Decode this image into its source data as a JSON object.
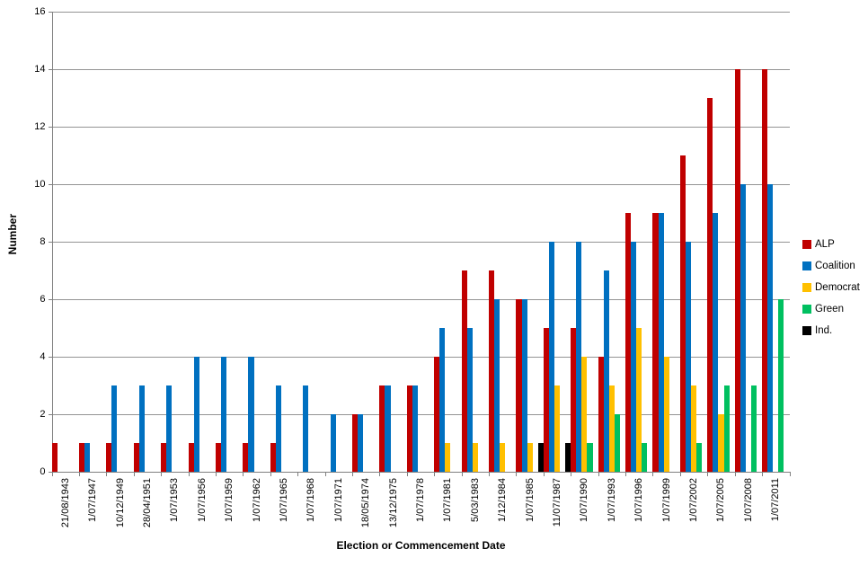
{
  "chart_data": {
    "type": "bar",
    "title": "",
    "xlabel": "Election or Commencement Date",
    "ylabel": "Number",
    "ylim": [
      0,
      16
    ],
    "yticks": [
      0,
      2,
      4,
      6,
      8,
      10,
      12,
      14,
      16
    ],
    "grid": true,
    "legend_position": "right",
    "categories": [
      "21/08/1943",
      "1/07/1947",
      "10/12/1949",
      "28/04/1951",
      "1/07/1953",
      "1/07/1956",
      "1/07/1959",
      "1/07/1962",
      "1/07/1965",
      "1/07/1968",
      "1/07/1971",
      "18/05/1974",
      "13/12/1975",
      "1/07/1978",
      "1/07/1981",
      "5/03/1983",
      "1/12/1984",
      "1/07/1985",
      "11/07/1987",
      "1/07/1990",
      "1/07/1993",
      "1/07/1996",
      "1/07/1999",
      "1/07/2002",
      "1/07/2005",
      "1/07/2008",
      "1/07/2011"
    ],
    "series": [
      {
        "name": "ALP",
        "key": "alp",
        "color": "#C00000",
        "values": [
          1,
          1,
          1,
          1,
          1,
          1,
          1,
          1,
          1,
          0,
          0,
          2,
          3,
          3,
          4,
          7,
          7,
          6,
          5,
          5,
          4,
          9,
          9,
          11,
          13,
          14,
          14
        ]
      },
      {
        "name": "Coalition",
        "key": "coalition",
        "color": "#0070C0",
        "values": [
          0,
          1,
          3,
          3,
          3,
          4,
          4,
          4,
          3,
          3,
          2,
          2,
          3,
          3,
          5,
          5,
          6,
          6,
          8,
          8,
          7,
          8,
          9,
          8,
          9,
          10,
          10
        ]
      },
      {
        "name": "Democrat",
        "key": "democrat",
        "color": "#FFC000",
        "values": [
          0,
          0,
          0,
          0,
          0,
          0,
          0,
          0,
          0,
          0,
          0,
          0,
          0,
          0,
          1,
          1,
          1,
          1,
          3,
          4,
          3,
          5,
          4,
          3,
          2,
          0,
          0
        ]
      },
      {
        "name": "Green",
        "key": "green",
        "color": "#00C060",
        "values": [
          0,
          0,
          0,
          0,
          0,
          0,
          0,
          0,
          0,
          0,
          0,
          0,
          0,
          0,
          0,
          0,
          0,
          0,
          0,
          1,
          2,
          1,
          0,
          1,
          3,
          3,
          6
        ]
      },
      {
        "name": "Ind.",
        "key": "ind",
        "color": "#000000",
        "values": [
          0,
          0,
          0,
          0,
          0,
          0,
          0,
          0,
          0,
          0,
          0,
          0,
          0,
          0,
          0,
          0,
          0,
          1,
          1,
          0,
          0,
          0,
          0,
          0,
          0,
          0,
          0
        ]
      }
    ]
  },
  "colors": {
    "gridline": "#949494",
    "axis": "#808080",
    "text": "#000000",
    "background": "#FFFFFF"
  }
}
